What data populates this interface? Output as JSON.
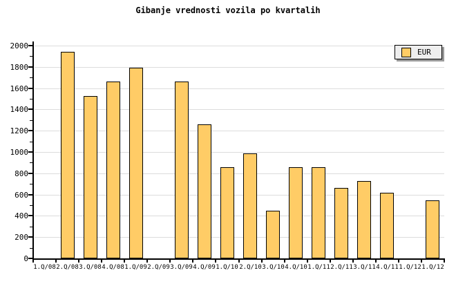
{
  "title": "Gibanje vrednosti vozila po kvartalih",
  "legend": {
    "label": "EUR"
  },
  "colors": {
    "background": "#FFFFFF",
    "bar_fill": "#FFCC66",
    "bar_border": "#000000",
    "grid": "#DCDCDC",
    "axis": "#000000",
    "legend_bg": "#EEEEEE",
    "legend_shadow": "#999999",
    "text": "#000000"
  },
  "chart_data": {
    "type": "bar",
    "title": "Gibanje vrednosti vozila po kvartalih",
    "series": [
      {
        "name": "EUR",
        "values": [
          null,
          1940,
          1525,
          1660,
          1790,
          null,
          1660,
          1260,
          860,
          990,
          450,
          860,
          860,
          660,
          725,
          620,
          null,
          545
        ]
      }
    ],
    "categories": [
      "1.Q/08",
      "2.Q/08",
      "3.Q/08",
      "4.Q/08",
      "1.Q/09",
      "2.Q/09",
      "3.Q/09",
      "4.Q/09",
      "1.Q/10",
      "2.Q/10",
      "3.Q/10",
      "4.Q/10",
      "1.Q/11",
      "2.Q/11",
      "3.Q/11",
      "4.Q/11",
      "1.Q/12",
      "1.Q/12"
    ],
    "xlabel": "",
    "ylabel": "",
    "ylim": [
      0,
      2000
    ],
    "ytick_step": 200,
    "ytick_minor_step": 100,
    "ytick_labels": [
      "0",
      "200",
      "400",
      "600",
      "800",
      "1000",
      "1200",
      "1400",
      "1600",
      "1800",
      "2000"
    ],
    "grid": "horizontal-major",
    "legend_position": "top-right"
  }
}
